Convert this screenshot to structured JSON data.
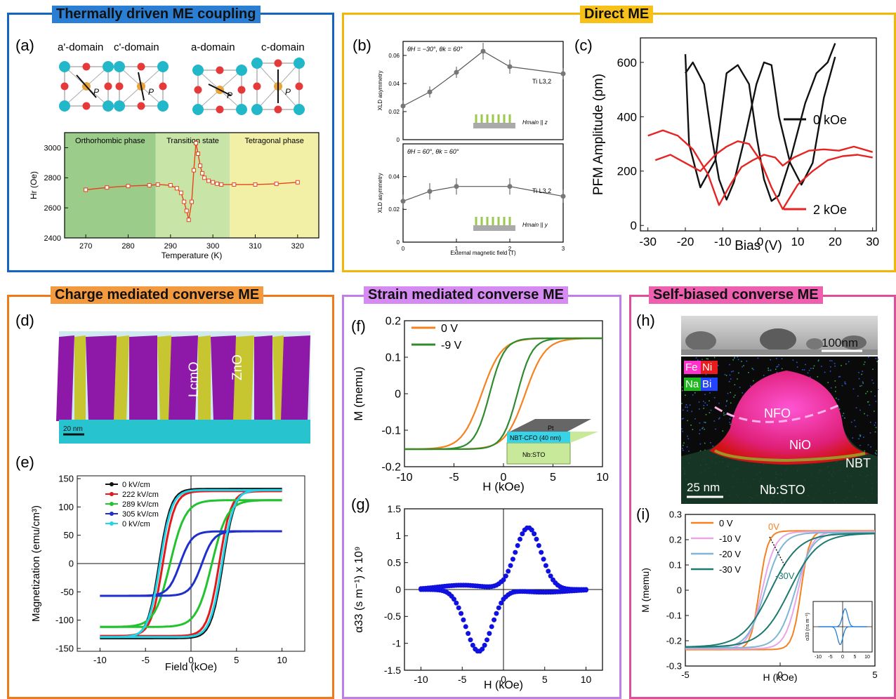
{
  "colors": {
    "blue_frame": "#1565C0",
    "gold_frame": "#F2B705",
    "orange_frame": "#F07A1A",
    "violet_frame": "#C07EE8",
    "pink_frame": "#E04D9B",
    "title_blue_bg": "#2A7FD4",
    "title_gold_bg": "#F7C11A",
    "title_orange_bg": "#F39A3F",
    "title_violet_bg": "#D68BF3",
    "title_pink_bg": "#EE5FAF"
  },
  "sections": {
    "thermal": "Thermally driven ME coupling",
    "direct": "Direct ME",
    "charge": "Charge mediated converse ME",
    "strain": "Strain mediated converse ME",
    "selfbiased": "Self-biased converse ME"
  },
  "panel_labels": {
    "a": "(a)",
    "b": "(b)",
    "c": "(c)",
    "d": "(d)",
    "e": "(e)",
    "f": "(f)",
    "g": "(g)",
    "h": "(h)",
    "i": "(i)"
  },
  "panel_a": {
    "domains": [
      "a'-domain",
      "c'-domain",
      "a-domain",
      "c-domain"
    ],
    "polarization_label": "P",
    "phases": [
      "Orthorhombic phase",
      "Transition state",
      "Tetragonal phase"
    ]
  },
  "panel_b": {
    "top_angles": "θH = −30°, θk = 60°",
    "bottom_angles": "θH = 60°, θk = 60°",
    "edge_label": "Ti L3,2",
    "top_field": "Hmain || z",
    "bottom_field": "Hmain || y"
  },
  "panel_d": {
    "labels": [
      "LcmO",
      "ZnO"
    ],
    "scalebar": "20 nm"
  },
  "panel_f_inset": {
    "top": "Pt",
    "middle": "NBT-CFO (40 nm)",
    "bottom": "Nb:STO"
  },
  "panel_h": {
    "scalebar_top": "100nm",
    "legend": [
      "Fe",
      "Ni",
      "Na",
      "Bi"
    ],
    "regions": [
      "NFO",
      "NiO",
      "NBT",
      "Nb:STO"
    ],
    "scalebar_bottom": "25 nm"
  },
  "panel_i_annot": {
    "from": "0V",
    "to": "-30V",
    "inset_ylabel": "α33 (ns m⁻¹)"
  },
  "chart_data": [
    {
      "id": "a",
      "type": "line",
      "xlabel": "Temperature (K)",
      "ylabel": "Hr (Oe)",
      "xlim": [
        265,
        325
      ],
      "ylim": [
        2400,
        3100
      ],
      "xticks": [
        270,
        280,
        290,
        300,
        310,
        320
      ],
      "yticks": [
        2400,
        2600,
        2800,
        3000
      ],
      "x": [
        270,
        275,
        280,
        285,
        287,
        290,
        291.5,
        292.5,
        293.2,
        293.8,
        294.3,
        295,
        295.5,
        296,
        296.5,
        297,
        297.5,
        298,
        299,
        300,
        301,
        302,
        305,
        310,
        315,
        320
      ],
      "y": [
        2720,
        2735,
        2745,
        2750,
        2755,
        2750,
        2730,
        2700,
        2640,
        2580,
        2520,
        2640,
        2850,
        3030,
        2960,
        2880,
        2830,
        2800,
        2780,
        2770,
        2760,
        2755,
        2755,
        2755,
        2760,
        2770
      ]
    },
    {
      "id": "b_top",
      "type": "line",
      "ylabel": "XLD asymmetry",
      "xlim": [
        0,
        3
      ],
      "ylim": [
        0,
        0.07
      ],
      "yticks": [
        0,
        0.02,
        0.04,
        0.06
      ],
      "x": [
        0,
        0.5,
        1.0,
        1.5,
        2.0,
        3.0
      ],
      "y": [
        0.024,
        0.034,
        0.048,
        0.063,
        0.052,
        0.047
      ],
      "err": [
        0.004,
        0.004,
        0.004,
        0.006,
        0.005,
        0.004
      ]
    },
    {
      "id": "b_bottom",
      "type": "line",
      "xlabel": "External magnetic field (T)",
      "ylabel": "XLD asymmetry",
      "xlim": [
        0,
        3
      ],
      "ylim": [
        0,
        0.06
      ],
      "yticks": [
        0,
        0.02,
        0.04
      ],
      "xticks": [
        0,
        1.0,
        2.0,
        3.0
      ],
      "x": [
        0,
        0.5,
        1.0,
        2.0,
        3.0
      ],
      "y": [
        0.025,
        0.031,
        0.034,
        0.034,
        0.028
      ],
      "err": [
        0.004,
        0.005,
        0.005,
        0.005,
        0.004
      ]
    },
    {
      "id": "c",
      "type": "line",
      "xlabel": "Bias (V)",
      "ylabel": "PFM Amplitude (pm)",
      "xlim": [
        -32,
        31
      ],
      "ylim": [
        -20,
        690
      ],
      "xticks": [
        -30,
        -20,
        -10,
        0,
        10,
        20,
        30
      ],
      "yticks": [
        0,
        200,
        400,
        600
      ],
      "series": [
        {
          "name": "0 kOe",
          "color": "#111111",
          "x": [
            -20,
            -18,
            -15,
            -13,
            -11,
            -9,
            -7,
            -4,
            -1,
            1,
            3,
            5,
            8,
            11,
            14,
            17,
            20
          ],
          "y": [
            560,
            600,
            520,
            330,
            170,
            95,
            160,
            330,
            520,
            600,
            590,
            400,
            230,
            150,
            230,
            470,
            620
          ]
        },
        {
          "name": "0 kOe b",
          "color": "#111111",
          "x": [
            20,
            18,
            15,
            12,
            8,
            5,
            3,
            1,
            -1,
            -3,
            -6,
            -9,
            -12,
            -16,
            -19,
            -20
          ],
          "y": [
            670,
            600,
            560,
            450,
            240,
            110,
            90,
            170,
            330,
            520,
            590,
            560,
            240,
            140,
            300,
            630
          ]
        },
        {
          "name": "2 kOe",
          "color": "#E52424",
          "x": [
            -30,
            -26,
            -22,
            -18,
            -14,
            -11,
            -8,
            -5,
            -2,
            1,
            4,
            6,
            9,
            13,
            17,
            21,
            25,
            30
          ],
          "y": [
            330,
            350,
            330,
            280,
            190,
            75,
            150,
            215,
            240,
            260,
            250,
            220,
            250,
            275,
            280,
            275,
            290,
            270
          ]
        },
        {
          "name": "2 kOe b",
          "color": "#E52424",
          "x": [
            30,
            26,
            22,
            18,
            14,
            10,
            6,
            3,
            0,
            -3,
            -6,
            -9,
            -12,
            -16,
            -20,
            -24,
            -28
          ],
          "y": [
            250,
            260,
            255,
            240,
            200,
            150,
            60,
            140,
            240,
            300,
            310,
            290,
            260,
            200,
            230,
            260,
            240
          ]
        }
      ],
      "legend": [
        "0 kOe",
        "2 kOe"
      ]
    },
    {
      "id": "e",
      "type": "line",
      "xlabel": "Field (kOe)",
      "ylabel": "Magnetization (emu/cm³)",
      "xlim": [
        -12.5,
        12.5
      ],
      "ylim": [
        -155,
        155
      ],
      "xticks": [
        -10,
        -5,
        0,
        5,
        10
      ],
      "yticks": [
        -150,
        -100,
        -50,
        0,
        50,
        100,
        150
      ],
      "series": [
        {
          "name": "0 kV/cm",
          "color": "#111111",
          "Ms": 132,
          "Hc": 3.5,
          "w": 1.3
        },
        {
          "name": "222 kV/cm",
          "color": "#E31A1C",
          "Ms": 128,
          "Hc": 3.1,
          "w": 1.3
        },
        {
          "name": "289 kV/cm",
          "color": "#22C32E",
          "Ms": 112,
          "Hc": 2.3,
          "w": 1.7
        },
        {
          "name": "305 kV/cm",
          "color": "#1F2ECC",
          "Ms": 57,
          "Hc": 1.2,
          "w": 1.3
        },
        {
          "name": "0 kV/cm",
          "color": "#22D4E8",
          "Ms": 130,
          "Hc": 3.4,
          "w": 1.3
        }
      ]
    },
    {
      "id": "f",
      "type": "line",
      "xlabel": "H (kOe)",
      "ylabel": "M (memu)",
      "xlim": [
        -10,
        10
      ],
      "ylim": [
        -0.2,
        0.2
      ],
      "xticks": [
        -10,
        -5,
        0,
        5,
        10
      ],
      "yticks": [
        -0.2,
        -0.1,
        0,
        0.1,
        0.2
      ],
      "series": [
        {
          "name": "0 V",
          "color": "#F58220",
          "Ms": 0.152,
          "Hc": 2.2,
          "w": 2.0
        },
        {
          "name": "-9 V",
          "color": "#2E8B2E",
          "Ms": 0.152,
          "Hc": 1.4,
          "w": 1.5
        }
      ]
    },
    {
      "id": "g",
      "type": "scatter",
      "xlabel": "H (kOe)",
      "ylabel": "α33 (s m⁻¹) x 10⁹",
      "xlim": [
        -12,
        12
      ],
      "ylim": [
        -1.5,
        1.5
      ],
      "xticks": [
        -10,
        -5,
        0,
        5,
        10
      ],
      "yticks": [
        -1.5,
        -1,
        -0.5,
        0,
        0.5,
        1,
        1.5
      ],
      "peak": 1.15,
      "peak_x": 3.0,
      "color": "#1010E0"
    },
    {
      "id": "i",
      "type": "line",
      "xlabel": "H (kOe)",
      "ylabel": "M (memu)",
      "xlim": [
        -5,
        5
      ],
      "ylim": [
        -0.3,
        0.3
      ],
      "xticks": [
        -5,
        0,
        5
      ],
      "yticks": [
        -0.3,
        -0.2,
        -0.1,
        0,
        0.1,
        0.2,
        0.3
      ],
      "series": [
        {
          "name": "0 V",
          "color": "#F58220",
          "Ms": 0.235,
          "Hc": 1.1,
          "w": 0.45
        },
        {
          "name": "-10 V",
          "color": "#E9A6E6",
          "Ms": 0.232,
          "Hc": 0.95,
          "w": 0.7
        },
        {
          "name": "-20 V",
          "color": "#7FB6D6",
          "Ms": 0.228,
          "Hc": 0.8,
          "w": 0.9
        },
        {
          "name": "-30 V",
          "color": "#1E7A70",
          "Ms": 0.225,
          "Hc": 0.5,
          "w": 1.5
        }
      ],
      "inset": {
        "xticks": [
          -10,
          -5,
          0,
          5,
          10
        ],
        "color": "#1976D2"
      }
    }
  ]
}
